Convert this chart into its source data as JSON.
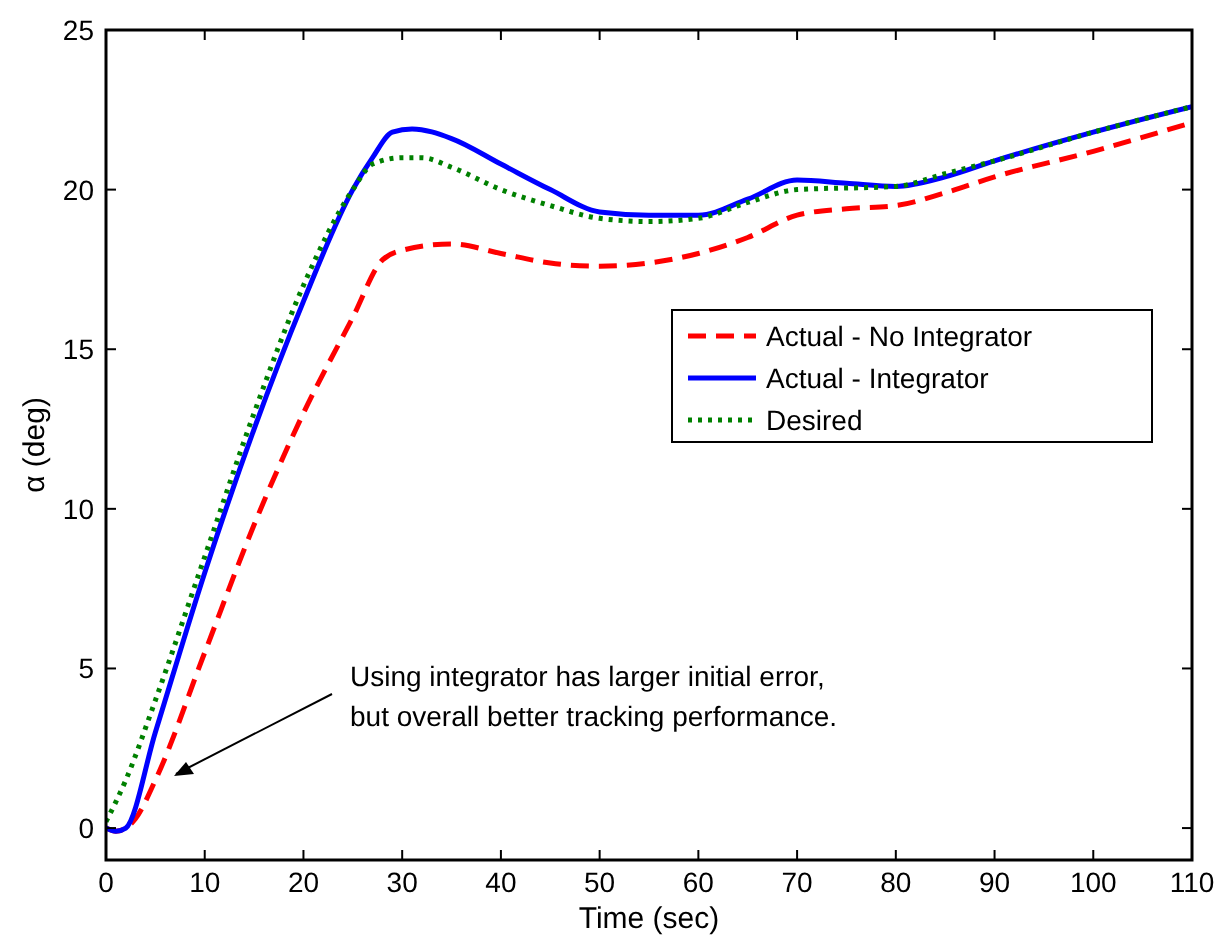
{
  "chart_data": {
    "type": "line",
    "xlabel": "Time (sec)",
    "ylabel": "α  (deg)",
    "xlim": [
      0,
      110
    ],
    "ylim": [
      -1,
      25
    ],
    "xticks": [
      0,
      10,
      20,
      30,
      40,
      50,
      60,
      70,
      80,
      90,
      100,
      110
    ],
    "yticks": [
      0,
      5,
      10,
      15,
      20,
      25
    ],
    "grid": false,
    "legend": "right",
    "annotations": [
      "Using integrator has larger initial error,\nbut overall better tracking performance."
    ],
    "series": [
      {
        "name": "Actual - No Integrator",
        "color": "#ff0000",
        "line_style": "dashed",
        "x": [
          0,
          1,
          3,
          5,
          10,
          15,
          20,
          25,
          28,
          30,
          35,
          40,
          45,
          50,
          55,
          60,
          65,
          70,
          75,
          80,
          85,
          90,
          100,
          110
        ],
        "values": [
          0,
          -0.1,
          0.3,
          1.5,
          5.5,
          9.5,
          13,
          16,
          17.8,
          18.1,
          18.3,
          18,
          17.7,
          17.6,
          17.7,
          18,
          18.5,
          19.2,
          19.4,
          19.5,
          19.9,
          20.4,
          21.2,
          22.1
        ]
      },
      {
        "name": "Actual - Integrator",
        "color": "#0000ff",
        "line_style": "solid",
        "x": [
          0,
          1,
          2,
          5,
          10,
          15,
          20,
          25,
          27,
          29,
          31,
          35,
          40,
          45,
          50,
          55,
          60,
          65,
          70,
          75,
          80,
          85,
          90,
          100,
          110
        ],
        "values": [
          0,
          -0.1,
          0,
          3,
          8,
          12.5,
          16.5,
          20,
          21,
          21.8,
          21.9,
          21.6,
          20.8,
          20,
          19.3,
          19.2,
          19.2,
          19.7,
          20.3,
          20.2,
          20.1,
          20.4,
          20.9,
          21.8,
          22.6
        ]
      },
      {
        "name": "Desired",
        "color": "#008000",
        "line_style": "dotted",
        "x": [
          0,
          2,
          5,
          10,
          15,
          20,
          25,
          27,
          30,
          32,
          35,
          40,
          45,
          50,
          55,
          60,
          65,
          70,
          80,
          85,
          90,
          100,
          110
        ],
        "values": [
          0.2,
          1.5,
          4,
          8.5,
          13,
          17,
          20,
          20.8,
          21,
          21,
          20.7,
          20,
          19.5,
          19.1,
          19,
          19.1,
          19.6,
          20,
          20.1,
          20.5,
          20.9,
          21.8,
          22.6
        ]
      }
    ]
  }
}
